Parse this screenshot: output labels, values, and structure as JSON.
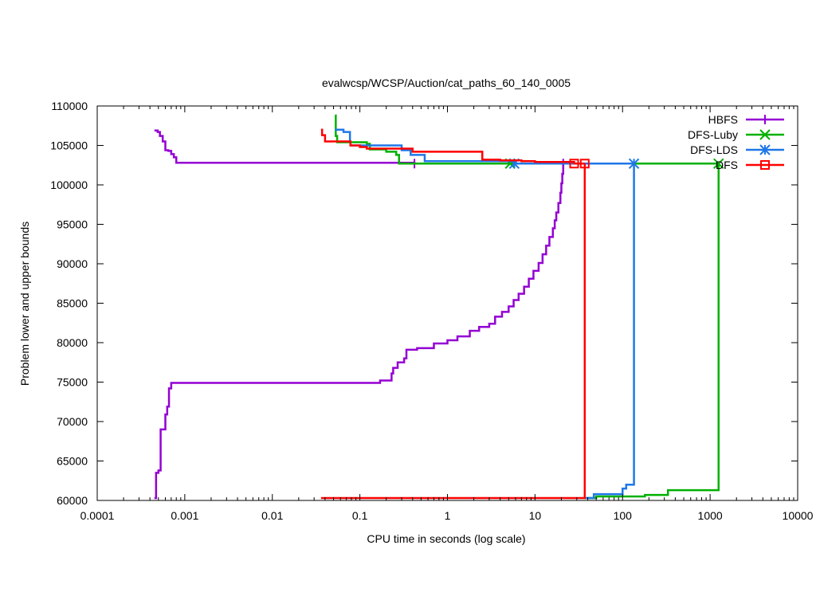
{
  "chart_data": {
    "type": "line",
    "title": "evalwcsp/WCSP/Auction/cat_paths_60_140_0005",
    "xlabel": "CPU time in seconds (log scale)",
    "ylabel": "Problem lower and upper bounds",
    "xscale": "log",
    "xlim": [
      0.0001,
      10000
    ],
    "ylim": [
      60000,
      110000
    ],
    "x_ticks": [
      0.0001,
      0.001,
      0.01,
      0.1,
      1,
      10,
      100,
      1000,
      10000
    ],
    "x_tick_labels": [
      "0.0001",
      "0.001",
      "0.01",
      "0.1",
      "1",
      "10",
      "100",
      "1000",
      "10000"
    ],
    "y_ticks": [
      60000,
      65000,
      70000,
      75000,
      80000,
      85000,
      90000,
      95000,
      100000,
      105000,
      110000
    ],
    "y_tick_labels": [
      "60000",
      "65000",
      "70000",
      "75000",
      "80000",
      "85000",
      "90000",
      "95000",
      "100000",
      "105000",
      "110000"
    ],
    "grid": false,
    "legend_position": "top-right",
    "series": [
      {
        "name": "HBFS",
        "color": "#9400d3",
        "marker": "plus",
        "upper": [
          [
            0.00045,
            106900
          ],
          [
            0.00049,
            106700
          ],
          [
            0.00052,
            106200
          ],
          [
            0.00056,
            105500
          ],
          [
            0.0006,
            104400
          ],
          [
            0.00065,
            104300
          ],
          [
            0.0007,
            103900
          ],
          [
            0.00075,
            103500
          ],
          [
            0.0008,
            102800
          ],
          [
            0.42,
            102700
          ]
        ],
        "lower": [
          [
            0.00045,
            60300
          ],
          [
            0.00047,
            63500
          ],
          [
            0.0005,
            63800
          ],
          [
            0.00053,
            69000
          ],
          [
            0.0006,
            70900
          ],
          [
            0.00063,
            71900
          ],
          [
            0.00066,
            74200
          ],
          [
            0.0007,
            74900
          ],
          [
            0.15,
            74900
          ],
          [
            0.17,
            75200
          ],
          [
            0.22,
            75200
          ],
          [
            0.23,
            76100
          ],
          [
            0.24,
            76800
          ],
          [
            0.27,
            77500
          ],
          [
            0.32,
            78000
          ],
          [
            0.34,
            79100
          ],
          [
            0.45,
            79300
          ],
          [
            0.7,
            79900
          ],
          [
            1.0,
            80300
          ],
          [
            1.3,
            80800
          ],
          [
            1.8,
            81500
          ],
          [
            2.3,
            82000
          ],
          [
            3.0,
            82400
          ],
          [
            3.5,
            83300
          ],
          [
            4.2,
            83900
          ],
          [
            5.0,
            84600
          ],
          [
            5.7,
            85400
          ],
          [
            6.5,
            86200
          ],
          [
            7.5,
            87100
          ],
          [
            8.5,
            88100
          ],
          [
            9.6,
            89100
          ],
          [
            11,
            90100
          ],
          [
            12.2,
            91200
          ],
          [
            13.4,
            92300
          ],
          [
            14.6,
            93400
          ],
          [
            16,
            94500
          ],
          [
            16.8,
            95500
          ],
          [
            17.5,
            96500
          ],
          [
            18.5,
            97700
          ],
          [
            19.5,
            99000
          ],
          [
            20,
            100200
          ],
          [
            20.5,
            101400
          ],
          [
            21,
            102700
          ]
        ],
        "markers": [
          [
            0.42,
            102700
          ],
          [
            21,
            102700
          ]
        ]
      },
      {
        "name": "DFS-Luby",
        "color": "#00b000",
        "marker": "x",
        "upper": [
          [
            0.052,
            108800
          ],
          [
            0.053,
            106200
          ],
          [
            0.055,
            105400
          ],
          [
            0.12,
            105200
          ],
          [
            0.13,
            104500
          ],
          [
            0.2,
            104200
          ],
          [
            0.26,
            103800
          ],
          [
            0.28,
            102700
          ],
          [
            1250,
            102700
          ]
        ],
        "lower": [
          [
            37,
            60300
          ],
          [
            50,
            60500
          ],
          [
            180,
            60700
          ],
          [
            330,
            61300
          ],
          [
            1250,
            61300
          ],
          [
            1250,
            102700
          ]
        ],
        "markers": [
          [
            5.2,
            102700
          ],
          [
            1250,
            102700
          ]
        ]
      },
      {
        "name": "DFS-LDS",
        "color": "#1f77e8",
        "marker": "asterisk",
        "upper": [
          [
            0.052,
            107000
          ],
          [
            0.065,
            106700
          ],
          [
            0.077,
            105500
          ],
          [
            0.078,
            105000
          ],
          [
            0.3,
            104400
          ],
          [
            0.38,
            103800
          ],
          [
            0.55,
            103000
          ],
          [
            5.8,
            102700
          ],
          [
            135,
            102700
          ]
        ],
        "lower": [
          [
            37,
            60300
          ],
          [
            47,
            60800
          ],
          [
            100,
            61500
          ],
          [
            110,
            62000
          ],
          [
            135,
            62000
          ],
          [
            135,
            102700
          ]
        ],
        "markers": [
          [
            5.8,
            102700
          ],
          [
            135,
            102700
          ]
        ]
      },
      {
        "name": "DFS",
        "color": "#ff0000",
        "marker": "square",
        "upper": [
          [
            0.036,
            107000
          ],
          [
            0.037,
            106300
          ],
          [
            0.04,
            105500
          ],
          [
            0.078,
            105000
          ],
          [
            0.1,
            104800
          ],
          [
            0.12,
            104600
          ],
          [
            0.4,
            104200
          ],
          [
            2.5,
            103200
          ],
          [
            4,
            103100
          ],
          [
            7,
            103000
          ],
          [
            10,
            102900
          ],
          [
            28,
            102700
          ],
          [
            37,
            102700
          ]
        ],
        "lower": [
          [
            0.036,
            60300
          ],
          [
            37,
            60300
          ],
          [
            37,
            102700
          ]
        ],
        "markers": [
          [
            28,
            102700
          ],
          [
            37,
            102700
          ]
        ]
      }
    ]
  }
}
